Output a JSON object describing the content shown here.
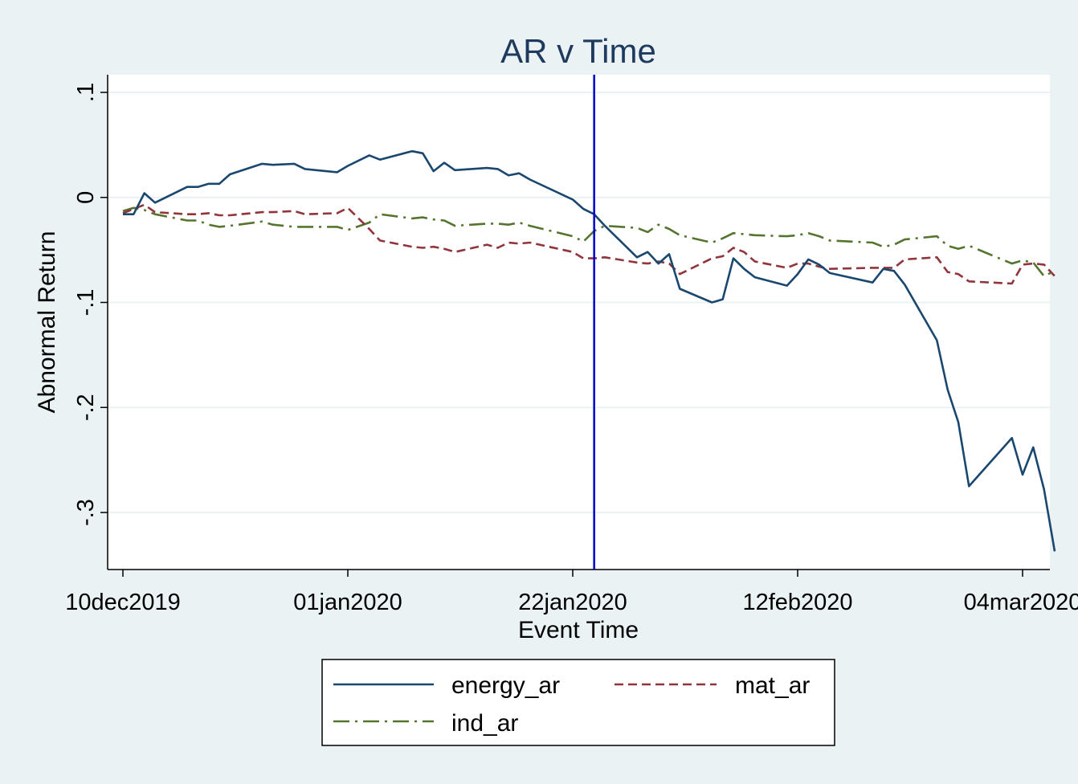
{
  "chart_data": {
    "type": "line",
    "title": "AR v Time",
    "xlabel": "Event Time",
    "ylabel": "Abnormal Return",
    "x_tick_labels": [
      "10dec2019",
      "01jan2020",
      "22jan2020",
      "12feb2020",
      "04mar2020"
    ],
    "y_tick_labels": [
      ".1",
      "0",
      "-.1",
      "-.2",
      "-.3"
    ],
    "y_ticks": [
      0.1,
      0,
      -0.1,
      -0.2,
      -0.3
    ],
    "ylim": [
      -0.35,
      0.115
    ],
    "xlim": [
      "2019-12-10",
      "2020-03-05"
    ],
    "event_line": {
      "x": "2020-01-23",
      "color": "#0000cc"
    },
    "grid": true,
    "legend_position": "bottom",
    "series": [
      {
        "name": "energy_ar",
        "color": "#1a476f",
        "style": "solid",
        "points": [
          [
            "2019-12-10",
            -0.016
          ],
          [
            "2019-12-11",
            -0.016
          ],
          [
            "2019-12-12",
            0.004
          ],
          [
            "2019-12-13",
            -0.005
          ],
          [
            "2019-12-16",
            0.01
          ],
          [
            "2019-12-17",
            0.01
          ],
          [
            "2019-12-18",
            0.013
          ],
          [
            "2019-12-19",
            0.013
          ],
          [
            "2019-12-20",
            0.022
          ],
          [
            "2019-12-23",
            0.032
          ],
          [
            "2019-12-24",
            0.031
          ],
          [
            "2019-12-26",
            0.032
          ],
          [
            "2019-12-27",
            0.027
          ],
          [
            "2019-12-30",
            0.024
          ],
          [
            "2019-12-31",
            0.03
          ],
          [
            "2020-01-02",
            0.04
          ],
          [
            "2020-01-03",
            0.036
          ],
          [
            "2020-01-06",
            0.044
          ],
          [
            "2020-01-07",
            0.042
          ],
          [
            "2020-01-08",
            0.025
          ],
          [
            "2020-01-09",
            0.033
          ],
          [
            "2020-01-10",
            0.026
          ],
          [
            "2020-01-13",
            0.028
          ],
          [
            "2020-01-14",
            0.027
          ],
          [
            "2020-01-15",
            0.021
          ],
          [
            "2020-01-16",
            0.023
          ],
          [
            "2020-01-17",
            0.017
          ],
          [
            "2020-01-21",
            -0.002
          ],
          [
            "2020-01-22",
            -0.011
          ],
          [
            "2020-01-23",
            -0.016
          ],
          [
            "2020-01-24",
            -0.027
          ],
          [
            "2020-01-27",
            -0.057
          ],
          [
            "2020-01-28",
            -0.052
          ],
          [
            "2020-01-29",
            -0.063
          ],
          [
            "2020-01-30",
            -0.054
          ],
          [
            "2020-01-31",
            -0.087
          ],
          [
            "2020-02-03",
            -0.1
          ],
          [
            "2020-02-04",
            -0.097
          ],
          [
            "2020-02-05",
            -0.058
          ],
          [
            "2020-02-06",
            -0.068
          ],
          [
            "2020-02-07",
            -0.076
          ],
          [
            "2020-02-10",
            -0.084
          ],
          [
            "2020-02-11",
            -0.073
          ],
          [
            "2020-02-12",
            -0.059
          ],
          [
            "2020-02-13",
            -0.064
          ],
          [
            "2020-02-14",
            -0.072
          ],
          [
            "2020-02-18",
            -0.081
          ],
          [
            "2020-02-19",
            -0.068
          ],
          [
            "2020-02-20",
            -0.07
          ],
          [
            "2020-02-21",
            -0.083
          ],
          [
            "2020-02-24",
            -0.136
          ],
          [
            "2020-02-25",
            -0.183
          ],
          [
            "2020-02-26",
            -0.214
          ],
          [
            "2020-02-27",
            -0.275
          ],
          [
            "2020-03-02",
            -0.229
          ],
          [
            "2020-03-03",
            -0.264
          ],
          [
            "2020-03-04",
            -0.238
          ],
          [
            "2020-03-05",
            -0.278
          ],
          [
            "2020-03-06",
            -0.337
          ]
        ]
      },
      {
        "name": "mat_ar",
        "color": "#90353b",
        "style": "dashed",
        "points": [
          [
            "2019-12-10",
            -0.015
          ],
          [
            "2019-12-12",
            -0.007
          ],
          [
            "2019-12-13",
            -0.014
          ],
          [
            "2019-12-16",
            -0.016
          ],
          [
            "2019-12-17",
            -0.016
          ],
          [
            "2019-12-18",
            -0.015
          ],
          [
            "2019-12-19",
            -0.017
          ],
          [
            "2019-12-20",
            -0.017
          ],
          [
            "2019-12-23",
            -0.014
          ],
          [
            "2019-12-24",
            -0.014
          ],
          [
            "2019-12-26",
            -0.013
          ],
          [
            "2019-12-27",
            -0.016
          ],
          [
            "2019-12-30",
            -0.015
          ],
          [
            "2019-12-31",
            -0.01
          ],
          [
            "2020-01-02",
            -0.03
          ],
          [
            "2020-01-03",
            -0.041
          ],
          [
            "2020-01-06",
            -0.047
          ],
          [
            "2020-01-07",
            -0.048
          ],
          [
            "2020-01-08",
            -0.047
          ],
          [
            "2020-01-09",
            -0.049
          ],
          [
            "2020-01-10",
            -0.052
          ],
          [
            "2020-01-13",
            -0.045
          ],
          [
            "2020-01-14",
            -0.048
          ],
          [
            "2020-01-15",
            -0.043
          ],
          [
            "2020-01-16",
            -0.044
          ],
          [
            "2020-01-17",
            -0.043
          ],
          [
            "2020-01-21",
            -0.052
          ],
          [
            "2020-01-22",
            -0.058
          ],
          [
            "2020-01-23",
            -0.058
          ],
          [
            "2020-01-24",
            -0.057
          ],
          [
            "2020-01-27",
            -0.062
          ],
          [
            "2020-01-28",
            -0.063
          ],
          [
            "2020-01-29",
            -0.061
          ],
          [
            "2020-01-30",
            -0.063
          ],
          [
            "2020-01-31",
            -0.073
          ],
          [
            "2020-02-03",
            -0.058
          ],
          [
            "2020-02-04",
            -0.056
          ],
          [
            "2020-02-05",
            -0.048
          ],
          [
            "2020-02-06",
            -0.052
          ],
          [
            "2020-02-07",
            -0.061
          ],
          [
            "2020-02-10",
            -0.067
          ],
          [
            "2020-02-11",
            -0.063
          ],
          [
            "2020-02-12",
            -0.063
          ],
          [
            "2020-02-13",
            -0.066
          ],
          [
            "2020-02-14",
            -0.068
          ],
          [
            "2020-02-18",
            -0.067
          ],
          [
            "2020-02-19",
            -0.067
          ],
          [
            "2020-02-20",
            -0.067
          ],
          [
            "2020-02-21",
            -0.059
          ],
          [
            "2020-02-24",
            -0.057
          ],
          [
            "2020-02-25",
            -0.071
          ],
          [
            "2020-02-26",
            -0.073
          ],
          [
            "2020-02-27",
            -0.08
          ],
          [
            "2020-03-02",
            -0.082
          ],
          [
            "2020-03-03",
            -0.064
          ],
          [
            "2020-03-04",
            -0.063
          ],
          [
            "2020-03-05",
            -0.064
          ],
          [
            "2020-03-06",
            -0.075
          ]
        ]
      },
      {
        "name": "ind_ar",
        "color": "#55752f",
        "style": "dashdot",
        "points": [
          [
            "2019-12-10",
            -0.013
          ],
          [
            "2019-12-11",
            -0.01
          ],
          [
            "2019-12-12",
            -0.012
          ],
          [
            "2019-12-13",
            -0.016
          ],
          [
            "2019-12-16",
            -0.022
          ],
          [
            "2019-12-17",
            -0.022
          ],
          [
            "2019-12-18",
            -0.026
          ],
          [
            "2019-12-19",
            -0.028
          ],
          [
            "2019-12-20",
            -0.027
          ],
          [
            "2019-12-23",
            -0.023
          ],
          [
            "2019-12-24",
            -0.026
          ],
          [
            "2019-12-26",
            -0.028
          ],
          [
            "2019-12-27",
            -0.028
          ],
          [
            "2019-12-30",
            -0.028
          ],
          [
            "2019-12-31",
            -0.031
          ],
          [
            "2020-01-02",
            -0.024
          ],
          [
            "2020-01-03",
            -0.016
          ],
          [
            "2020-01-06",
            -0.02
          ],
          [
            "2020-01-07",
            -0.019
          ],
          [
            "2020-01-08",
            -0.021
          ],
          [
            "2020-01-09",
            -0.022
          ],
          [
            "2020-01-10",
            -0.027
          ],
          [
            "2020-01-13",
            -0.025
          ],
          [
            "2020-01-14",
            -0.025
          ],
          [
            "2020-01-15",
            -0.026
          ],
          [
            "2020-01-16",
            -0.024
          ],
          [
            "2020-01-17",
            -0.027
          ],
          [
            "2020-01-21",
            -0.037
          ],
          [
            "2020-01-22",
            -0.042
          ],
          [
            "2020-01-23",
            -0.032
          ],
          [
            "2020-01-24",
            -0.027
          ],
          [
            "2020-01-27",
            -0.029
          ],
          [
            "2020-01-28",
            -0.033
          ],
          [
            "2020-01-29",
            -0.026
          ],
          [
            "2020-01-30",
            -0.03
          ],
          [
            "2020-01-31",
            -0.036
          ],
          [
            "2020-02-03",
            -0.043
          ],
          [
            "2020-02-04",
            -0.039
          ],
          [
            "2020-02-05",
            -0.034
          ],
          [
            "2020-02-06",
            -0.035
          ],
          [
            "2020-02-07",
            -0.036
          ],
          [
            "2020-02-10",
            -0.037
          ],
          [
            "2020-02-11",
            -0.036
          ],
          [
            "2020-02-12",
            -0.034
          ],
          [
            "2020-02-13",
            -0.037
          ],
          [
            "2020-02-14",
            -0.041
          ],
          [
            "2020-02-18",
            -0.043
          ],
          [
            "2020-02-19",
            -0.047
          ],
          [
            "2020-02-20",
            -0.045
          ],
          [
            "2020-02-21",
            -0.04
          ],
          [
            "2020-02-24",
            -0.037
          ],
          [
            "2020-02-25",
            -0.046
          ],
          [
            "2020-02-26",
            -0.049
          ],
          [
            "2020-02-27",
            -0.046
          ],
          [
            "2020-03-02",
            -0.063
          ],
          [
            "2020-03-03",
            -0.06
          ],
          [
            "2020-03-04",
            -0.062
          ],
          [
            "2020-03-05",
            -0.075
          ],
          [
            "2020-03-06",
            -0.07
          ]
        ]
      }
    ]
  }
}
